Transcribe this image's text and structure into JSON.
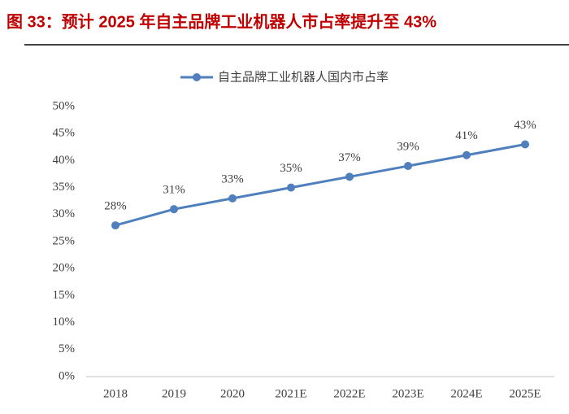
{
  "chart_data": {
    "type": "line",
    "title": "图 33：预计 2025 年自主品牌工业机器人市占率提升至 43%",
    "categories": [
      "2018",
      "2019",
      "2020",
      "2021E",
      "2022E",
      "2023E",
      "2024E",
      "2025E"
    ],
    "series": [
      {
        "name": "自主品牌工业机器人国内市占率",
        "color": "#4f7fbd",
        "values": [
          28,
          31,
          33,
          35,
          37,
          39,
          41,
          43
        ],
        "value_labels": [
          "28%",
          "31%",
          "33%",
          "35%",
          "37%",
          "39%",
          "41%",
          "43%"
        ]
      }
    ],
    "ylim": [
      0,
      50
    ],
    "yticks": [
      {
        "value": 0,
        "label": "0%"
      },
      {
        "value": 5,
        "label": "5%"
      },
      {
        "value": 10,
        "label": "10%"
      },
      {
        "value": 15,
        "label": "15%"
      },
      {
        "value": 20,
        "label": "20%"
      },
      {
        "value": 25,
        "label": "25%"
      },
      {
        "value": 30,
        "label": "30%"
      },
      {
        "value": 35,
        "label": "35%"
      },
      {
        "value": 40,
        "label": "40%"
      },
      {
        "value": 45,
        "label": "45%"
      },
      {
        "value": 50,
        "label": "50%"
      }
    ],
    "grid": false,
    "legend": "top"
  }
}
